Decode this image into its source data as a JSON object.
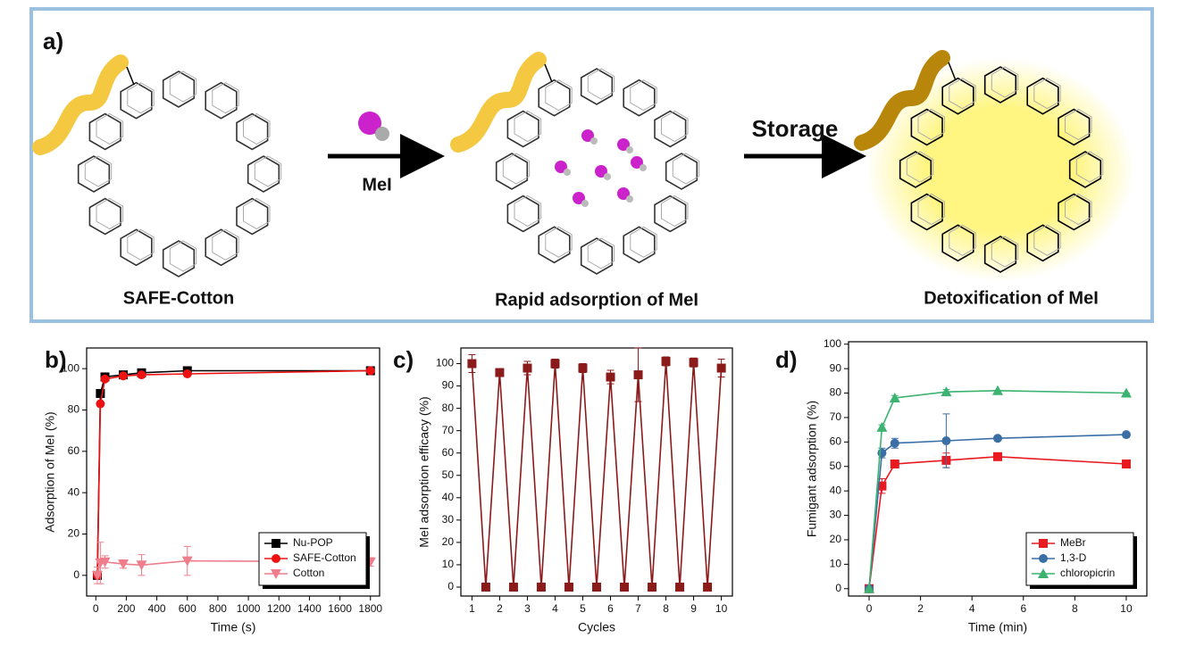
{
  "figure": {
    "panel_a": {
      "label": "a)",
      "arrow_1": "MeI",
      "arrow_2": "Storage",
      "captions": [
        "SAFE-Cotton",
        "Rapid adsorption of MeI",
        "Detoxification of MeI"
      ]
    },
    "chart_data": [
      {
        "type": "line",
        "panel_label": "b)",
        "xlabel": "Time (s)",
        "ylabel": "Adsorption of MeI (%)",
        "x": [
          10,
          30,
          60,
          180,
          300,
          600,
          1800
        ],
        "series": [
          {
            "name": "Nu-POP",
            "color": "#000000",
            "marker": "square",
            "values": [
              0,
              88,
              96,
              97,
              98,
              99,
              99
            ]
          },
          {
            "name": "SAFE-Cotton",
            "color": "#ee1111",
            "marker": "circle",
            "values": [
              0,
              83,
              95,
              96.5,
              97,
              97.5,
              99
            ]
          },
          {
            "name": "Cotton",
            "color": "#f07d8c",
            "marker": "triangle-down",
            "values": [
              0,
              6,
              6.5,
              5.5,
              5,
              7,
              6.5
            ],
            "errors": [
              4,
              10,
              3,
              2,
              5,
              7,
              2
            ]
          }
        ],
        "xlim": [
          -60,
          1860
        ],
        "xticks": [
          0,
          200,
          400,
          600,
          800,
          1000,
          1200,
          1400,
          1600,
          1800
        ],
        "ylim": [
          -10,
          110
        ],
        "yticks": [
          0,
          20,
          40,
          60,
          80,
          100
        ],
        "legend": "lower right"
      },
      {
        "type": "line",
        "panel_label": "c)",
        "xlabel": "Cycles",
        "ylabel": "MeI adsorption efficacy (%)",
        "x": [
          1,
          1.5,
          2,
          2.5,
          3,
          3.5,
          4,
          4.5,
          5,
          5.5,
          6,
          6.5,
          7,
          7.5,
          8,
          8.5,
          9,
          9.5,
          10
        ],
        "series": [
          {
            "color": "#8b1a1a",
            "marker": "square",
            "values": [
              100,
              0,
              96,
              0,
              98,
              0,
              100,
              0,
              98,
              0,
              94,
              0,
              95,
              0,
              101,
              0,
              100.5,
              0,
              98
            ],
            "errors": [
              4,
              null,
              1,
              null,
              3,
              null,
              2,
              null,
              2,
              null,
              3,
              null,
              12,
              null,
              2,
              null,
              2,
              null,
              4
            ]
          }
        ],
        "xlim": [
          0.6,
          10.4
        ],
        "xticks": [
          1,
          2,
          3,
          4,
          5,
          6,
          7,
          8,
          9,
          10
        ],
        "ylim": [
          -4,
          107
        ],
        "yticks": [
          0,
          10,
          20,
          30,
          40,
          50,
          60,
          70,
          80,
          90,
          100
        ]
      },
      {
        "type": "line",
        "panel_label": "d)",
        "xlabel": "Time (min)",
        "ylabel": "Fumigant adsorption (%)",
        "x": [
          0,
          0.5,
          1,
          3,
          5,
          10
        ],
        "series": [
          {
            "name": "MeBr",
            "color": "#e8191f",
            "marker": "square",
            "values": [
              0,
              42,
              51,
              52.5,
              54,
              51
            ],
            "errors": [
              0,
              3,
              1,
              3,
              0,
              0
            ]
          },
          {
            "name": "1,3-D",
            "color": "#3a6ea5",
            "marker": "circle",
            "values": [
              0,
              55.5,
              59.5,
              60.5,
              61.5,
              63
            ],
            "errors": [
              0,
              2,
              2,
              11,
              0,
              0
            ]
          },
          {
            "name": "chloropicrin",
            "color": "#3cb371",
            "marker": "triangle",
            "values": [
              0,
              66,
              78,
              80.5,
              81,
              80
            ],
            "errors": [
              0,
              1,
              1,
              1,
              0,
              0
            ]
          }
        ],
        "xlim": [
          -0.8,
          10.8
        ],
        "xticks": [
          0,
          2,
          4,
          6,
          8,
          10
        ],
        "ylim": [
          -3,
          101
        ],
        "yticks": [
          0,
          10,
          20,
          30,
          40,
          50,
          60,
          70,
          80,
          90,
          100
        ],
        "legend": "lower right"
      }
    ]
  }
}
